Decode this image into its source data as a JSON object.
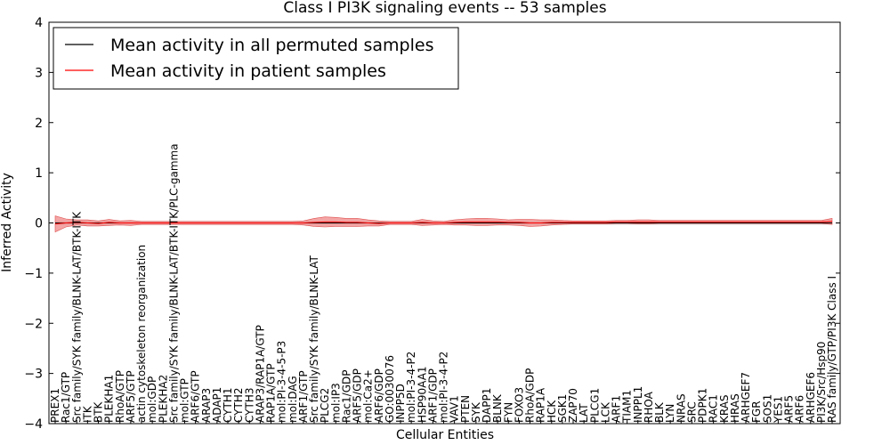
{
  "chart_data": {
    "type": "line",
    "title": "Class I PI3K signaling events -- 53 samples",
    "xlabel": "Cellular Entities",
    "ylabel": "Inferred Activity",
    "ylim": [
      -4,
      4
    ],
    "yticks": [
      4,
      3,
      2,
      1,
      0,
      -1,
      -2,
      -3,
      -4
    ],
    "ytick_labels": [
      "4",
      "3",
      "2",
      "1",
      "0",
      "−1",
      "−2",
      "−3",
      "−4"
    ],
    "legend_position": "top-left",
    "colors": {
      "permuted": "#000000",
      "patient": "#ff0000",
      "patient_band": "#f08080",
      "permuted_band": "#bbbbbb"
    },
    "categories": [
      "PREX1",
      "Rac1/GTP",
      "Src family/SYK family/BLNK-LAT/BTK-ITK",
      "ITK",
      "BTK",
      "PLEKHA1",
      "RhoA/GTP",
      "ARF5/GTP",
      "actin cytoskeleton reorganization",
      "mol:GDP",
      "PLEKHA2",
      "Src family/SYK family/BLNK-LAT/BTK-ITK/PLC-gamma",
      "mol:GTP",
      "ARF6/GTP",
      "ARAP3",
      "ADAP1",
      "CYTH1",
      "CYTH2",
      "CYTH3",
      "ARAP3/RAP1A/GTP",
      "RAP1A/GTP",
      "mol:PI-3-4-5-P3",
      "mol:DAG",
      "ARF1/GTP",
      "Src family/SYK family/BLNK-LAT",
      "PLCG2",
      "mol:IP3",
      "Rac1/GDP",
      "ARF5/GDP",
      "mol:Ca2+",
      "ARF6/GDP",
      "GO:0030076",
      "INPP5D",
      "mol:PI-3-4-P2",
      "HSP90AA1",
      "ARF1/GDP",
      "mol:PI-3-4-P2",
      "VAV1",
      "PTEN",
      "SYK",
      "DAPP1",
      "BLNK",
      "FYN",
      "FOXO3",
      "RhoA/GDP",
      "RAP1A",
      "HCK",
      "SGK1",
      "ZAP70",
      "LAT",
      "PLCG1",
      "LCK",
      "ARF1",
      "TIAM1",
      "INPPL1",
      "RHOA",
      "BLK",
      "LYN",
      "NRAS",
      "SRC",
      "PDPK1",
      "RAC1",
      "KRAS",
      "HRAS",
      "ARHGEF7",
      "FGR",
      "SOS1",
      "YES1",
      "ARF5",
      "ARF6",
      "ARHGEF6",
      "PI3K/Src/Hsp90",
      "RAS family/GTP/PI3K Class I"
    ],
    "series": [
      {
        "name": "Mean activity in all permuted samples",
        "values": [
          0,
          0,
          0,
          0,
          0,
          0,
          0,
          0,
          0,
          0,
          0,
          0,
          0,
          0,
          0,
          0,
          0,
          0,
          0,
          0,
          0,
          0,
          0,
          0,
          0,
          0,
          0,
          0,
          0,
          0,
          0,
          0,
          0,
          0,
          0,
          0,
          0,
          0,
          0,
          0,
          0,
          0,
          0,
          0,
          0,
          0,
          0,
          0,
          0,
          0,
          0,
          0,
          0,
          0,
          0,
          0,
          0,
          0,
          0,
          0,
          0,
          0,
          0,
          0,
          0,
          0,
          0,
          0,
          0,
          0,
          0,
          0,
          0
        ]
      },
      {
        "name": "Mean activity in patient samples",
        "values": [
          -0.02,
          0.0,
          0.01,
          0.0,
          -0.01,
          0.01,
          0.0,
          0.0,
          0.0,
          0.0,
          0.0,
          0.0,
          0.0,
          0.0,
          0.0,
          0.0,
          0.0,
          0.0,
          0.0,
          0.0,
          0.0,
          0.0,
          0.0,
          0.0,
          0.01,
          0.02,
          0.02,
          0.01,
          0.01,
          0.0,
          -0.01,
          0.0,
          0.0,
          0.0,
          0.01,
          0.0,
          0.0,
          0.01,
          0.02,
          0.02,
          0.02,
          0.02,
          0.01,
          0.01,
          0.0,
          0.0,
          0.01,
          0.01,
          0.01,
          0.01,
          0.01,
          0.01,
          0.02,
          0.02,
          0.02,
          0.02,
          0.02,
          0.02,
          0.02,
          0.02,
          0.02,
          0.02,
          0.02,
          0.02,
          0.02,
          0.02,
          0.02,
          0.02,
          0.02,
          0.02,
          0.02,
          0.02,
          0.03
        ]
      }
    ],
    "patient_spread": [
      0.16,
      0.08,
      0.05,
      0.06,
      0.05,
      0.06,
      0.04,
      0.05,
      0.03,
      0.03,
      0.03,
      0.03,
      0.03,
      0.03,
      0.03,
      0.03,
      0.03,
      0.03,
      0.03,
      0.03,
      0.03,
      0.03,
      0.03,
      0.04,
      0.08,
      0.1,
      0.09,
      0.08,
      0.08,
      0.06,
      0.05,
      0.03,
      0.03,
      0.03,
      0.06,
      0.04,
      0.03,
      0.05,
      0.06,
      0.07,
      0.07,
      0.06,
      0.05,
      0.06,
      0.07,
      0.06,
      0.05,
      0.04,
      0.03,
      0.03,
      0.03,
      0.03,
      0.03,
      0.03,
      0.04,
      0.04,
      0.03,
      0.03,
      0.03,
      0.03,
      0.03,
      0.03,
      0.03,
      0.03,
      0.03,
      0.03,
      0.03,
      0.03,
      0.03,
      0.03,
      0.03,
      0.03,
      0.06
    ],
    "permuted_spread": 0.04
  }
}
